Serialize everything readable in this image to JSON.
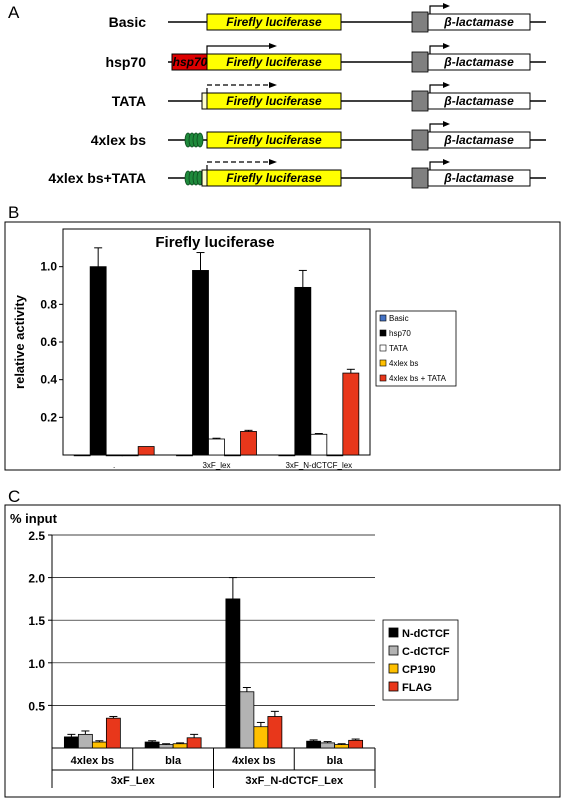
{
  "panels": {
    "a_letter": "A",
    "b_letter": "B",
    "c_letter": "C"
  },
  "panel_a": {
    "gene_firefly": "Firefly luciferase",
    "gene_bla": "β-lactamase",
    "promoter_hsp70": "hsp70",
    "constructs": [
      {
        "name": "Basic",
        "hsp70": false,
        "tata": false,
        "lex": false,
        "dashed": false,
        "arrow": false
      },
      {
        "name": "hsp70",
        "hsp70": true,
        "tata": false,
        "lex": false,
        "dashed": false,
        "arrow": true
      },
      {
        "name": "TATA",
        "hsp70": false,
        "tata": true,
        "lex": false,
        "dashed": true,
        "arrow": true
      },
      {
        "name": "4xlex bs",
        "hsp70": false,
        "tata": false,
        "lex": true,
        "dashed": false,
        "arrow": false
      },
      {
        "name": "4xlex bs+TATA",
        "hsp70": false,
        "tata": true,
        "lex": true,
        "dashed": true,
        "arrow": true
      }
    ],
    "colors": {
      "firefly": "#ffff00",
      "hsp70": "#dd0000",
      "lex": "#1f8a3c",
      "bla_box": "#808080"
    }
  },
  "chart_data": [
    {
      "type": "bar",
      "title": "Firefly luciferase",
      "ylabel": "relative activity",
      "ylim": [
        0,
        1.2
      ],
      "yticks": [
        "0.2",
        "0.4",
        "0.6",
        "0.8",
        "1.0"
      ],
      "categories": [
        ".",
        "3xF_lex",
        "3xF_N-dCTCF_lex"
      ],
      "series": [
        {
          "name": "Basic",
          "color": "#4472c4",
          "values": [
            0.0,
            0.0,
            0.0
          ],
          "errors": [
            0,
            0,
            0
          ]
        },
        {
          "name": "hsp70",
          "color": "#000000",
          "values": [
            1.0,
            0.98,
            0.89
          ],
          "errors": [
            0.1,
            0.095,
            0.09
          ]
        },
        {
          "name": "TATA",
          "color": "#ffffff",
          "values": [
            0.0,
            0.085,
            0.11
          ],
          "errors": [
            0,
            0.004,
            0.004
          ]
        },
        {
          "name": "4xlex bs",
          "color": "#ffc000",
          "values": [
            0.0,
            0.0,
            0.0
          ],
          "errors": [
            0,
            0,
            0
          ]
        },
        {
          "name": "4xlex bs + TATA",
          "color": "#e8371b",
          "values": [
            0.045,
            0.125,
            0.435
          ],
          "errors": [
            0,
            0.006,
            0.02
          ]
        }
      ],
      "legend": "right"
    },
    {
      "type": "bar",
      "ylabel": "% input",
      "ylim": [
        0,
        2.5
      ],
      "yticks": [
        "0.5",
        "1.0",
        "1.5",
        "2.0",
        "2.5"
      ],
      "grid": true,
      "categories": [
        "4xlex bs",
        "bla",
        "4xlex bs",
        "bla"
      ],
      "groups": [
        {
          "name": "3xF_Lex",
          "categories": [
            "4xlex bs",
            "bla"
          ]
        },
        {
          "name": "3xF_N-dCTCF_Lex",
          "categories": [
            "4xlex bs",
            "bla"
          ]
        }
      ],
      "series": [
        {
          "name": "N-dCTCF",
          "color": "#000000",
          "values": [
            0.13,
            0.07,
            1.75,
            0.08
          ],
          "errors": [
            0.03,
            0.015,
            0.25,
            0.015
          ]
        },
        {
          "name": "C-dCTCF",
          "color": "#b3b3b3",
          "values": [
            0.16,
            0.04,
            0.66,
            0.06
          ],
          "errors": [
            0.04,
            0.01,
            0.05,
            0.015
          ]
        },
        {
          "name": "CP190",
          "color": "#ffc000",
          "values": [
            0.07,
            0.05,
            0.25,
            0.04
          ],
          "errors": [
            0.015,
            0.01,
            0.05,
            0.01
          ]
        },
        {
          "name": "FLAG",
          "color": "#e8371b",
          "values": [
            0.35,
            0.12,
            0.37,
            0.09
          ],
          "errors": [
            0.02,
            0.04,
            0.06,
            0.015
          ]
        }
      ],
      "legend": "right"
    }
  ]
}
